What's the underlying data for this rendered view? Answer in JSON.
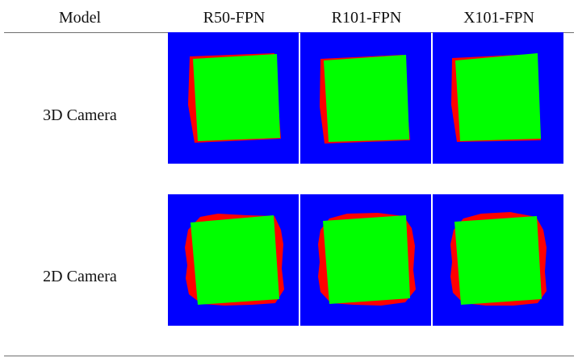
{
  "table": {
    "header": {
      "model_label": "Model",
      "columns": [
        "R50-FPN",
        "R101-FPN",
        "X101-FPN"
      ]
    },
    "rows": [
      {
        "label": "3D Camera"
      },
      {
        "label": "2D Camera"
      }
    ]
  },
  "colors": {
    "background": "#0000ff",
    "ground_truth": "#ff0000",
    "prediction": "#00ff00"
  }
}
